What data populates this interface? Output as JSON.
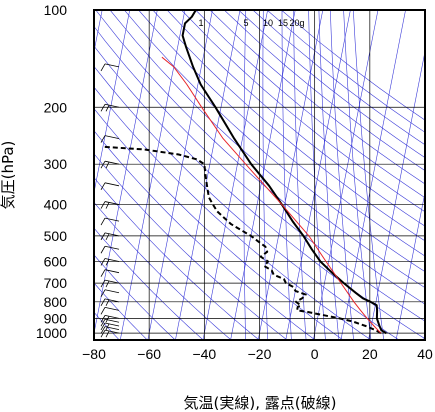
{
  "chart_data": {
    "type": "line",
    "subtype": "skew-t log-p thermodynamic diagram",
    "xlabel": "気温(実線), 露点(破線)",
    "ylabel": "気圧(hPa)",
    "xlim": [
      -80,
      40
    ],
    "ylim": [
      1050,
      100
    ],
    "y_scale": "log",
    "x_ticks": [
      -80,
      -60,
      -40,
      -20,
      0,
      20,
      40
    ],
    "x_tick_labels": [
      "−80",
      "−60",
      "−40",
      "−20",
      "0",
      "20",
      "40"
    ],
    "y_ticks": [
      100,
      200,
      300,
      400,
      500,
      600,
      700,
      800,
      900,
      1000
    ],
    "mixing_ratio_labels": [
      "1",
      "5",
      "10",
      "15",
      "20g"
    ],
    "colors": {
      "temperature": "#000000",
      "dewpoint": "#000000",
      "parcel": "#e8262b",
      "guide_lines": "#3b3bd9",
      "grid": "#000000"
    },
    "series": [
      {
        "key": "temperature",
        "style": "solid",
        "points": [
          [
            1000,
            26
          ],
          [
            980,
            24
          ],
          [
            950,
            23
          ],
          [
            900,
            21.5
          ],
          [
            850,
            21
          ],
          [
            820,
            20.5
          ],
          [
            800,
            18
          ],
          [
            780,
            15
          ],
          [
            750,
            12
          ],
          [
            700,
            7
          ],
          [
            650,
            2
          ],
          [
            600,
            -3
          ],
          [
            550,
            -7
          ],
          [
            500,
            -11
          ],
          [
            450,
            -16
          ],
          [
            400,
            -21
          ],
          [
            350,
            -27
          ],
          [
            300,
            -35
          ],
          [
            250,
            -43
          ],
          [
            200,
            -52
          ],
          [
            170,
            -59
          ],
          [
            150,
            -63
          ],
          [
            130,
            -67
          ],
          [
            120,
            -69
          ],
          [
            110,
            -69
          ],
          [
            105,
            -67
          ],
          [
            100,
            -66
          ]
        ]
      },
      {
        "key": "dewpoint",
        "style": "dashed",
        "points": [
          [
            1000,
            24
          ],
          [
            980,
            22
          ],
          [
            950,
            18
          ],
          [
            920,
            13
          ],
          [
            900,
            8
          ],
          [
            880,
            2
          ],
          [
            860,
            -4
          ],
          [
            850,
            -8
          ],
          [
            830,
            -8
          ],
          [
            820,
            -7
          ],
          [
            800,
            -9
          ],
          [
            780,
            -7
          ],
          [
            760,
            -6
          ],
          [
            740,
            -10
          ],
          [
            720,
            -11
          ],
          [
            700,
            -14
          ],
          [
            680,
            -15
          ],
          [
            660,
            -19
          ],
          [
            640,
            -20
          ],
          [
            620,
            -23
          ],
          [
            600,
            -22
          ],
          [
            580,
            -25
          ],
          [
            560,
            -23
          ],
          [
            540,
            -24
          ],
          [
            520,
            -27
          ],
          [
            500,
            -30
          ],
          [
            480,
            -34
          ],
          [
            460,
            -38
          ],
          [
            440,
            -41
          ],
          [
            420,
            -44
          ],
          [
            400,
            -46
          ],
          [
            380,
            -48
          ],
          [
            360,
            -49
          ],
          [
            340,
            -50
          ],
          [
            320,
            -51
          ],
          [
            300,
            -52
          ],
          [
            290,
            -55
          ],
          [
            280,
            -62
          ],
          [
            270,
            -75
          ],
          [
            265,
            -90
          ]
        ]
      },
      {
        "key": "parcel",
        "style": "solid",
        "points": [
          [
            1000,
            24
          ],
          [
            950,
            21
          ],
          [
            900,
            18
          ],
          [
            850,
            15
          ],
          [
            800,
            12
          ],
          [
            700,
            6
          ],
          [
            600,
            -1
          ],
          [
            500,
            -9
          ],
          [
            400,
            -21
          ],
          [
            300,
            -37
          ],
          [
            250,
            -47
          ],
          [
            200,
            -57
          ],
          [
            170,
            -64
          ],
          [
            150,
            -70
          ],
          [
            140,
            -75
          ]
        ]
      }
    ],
    "wind_barbs_column": [
      {
        "p": 1000
      },
      {
        "p": 975
      },
      {
        "p": 950
      },
      {
        "p": 925
      },
      {
        "p": 900
      },
      {
        "p": 850
      },
      {
        "p": 800
      },
      {
        "p": 750
      },
      {
        "p": 700
      },
      {
        "p": 650
      },
      {
        "p": 600
      },
      {
        "p": 550
      },
      {
        "p": 500
      },
      {
        "p": 450
      },
      {
        "p": 400
      },
      {
        "p": 350
      },
      {
        "p": 300
      },
      {
        "p": 250
      },
      {
        "p": 200
      },
      {
        "p": 150
      }
    ]
  }
}
